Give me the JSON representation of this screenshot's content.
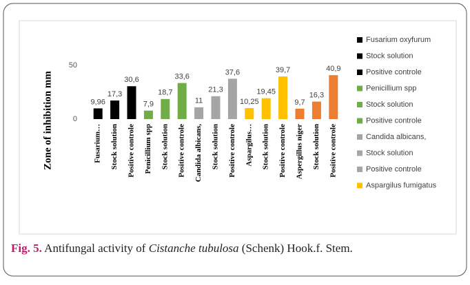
{
  "chart_data": {
    "type": "bar",
    "y_label": "Zone of inhibition  mm",
    "categories": [
      "Fusarium…",
      "Stock solution",
      "Positive controle",
      "Penicillium spp",
      "Stock solution",
      "Positive controle",
      "Candida albicans,",
      "Stock solution",
      "Positive controle",
      "Aspargilus…",
      "Stock solution",
      "Positive controle",
      "Aspergillus niger",
      "Stock solution",
      "Positive controle"
    ],
    "values": [
      9.96,
      17.3,
      30.6,
      7.9,
      18.7,
      33.6,
      11,
      21.3,
      37.6,
      10.25,
      19.45,
      39.7,
      9.7,
      16.3,
      40.9
    ],
    "value_labels": [
      "9,96",
      "17,3",
      "30,6",
      "7,9",
      "18,7",
      "33,6",
      "11",
      "21,3",
      "37,6",
      "10,25",
      "19,45",
      "39,7",
      "9,7",
      "16,3",
      "40,9"
    ],
    "colors": [
      "#000000",
      "#000000",
      "#000000",
      "#70ad47",
      "#70ad47",
      "#70ad47",
      "#a5a5a5",
      "#a5a5a5",
      "#a5a5a5",
      "#ffc000",
      "#ffc000",
      "#ffc000",
      "#ed7d31",
      "#ed7d31",
      "#ed7d31"
    ],
    "legend": [
      {
        "name": "Fusarium oxyfurum",
        "color": "#000000"
      },
      {
        "name": "Stock solution",
        "color": "#000000"
      },
      {
        "name": "Positive controle",
        "color": "#000000"
      },
      {
        "name": "Penicillium spp",
        "color": "#70ad47"
      },
      {
        "name": "Stock solution",
        "color": "#70ad47"
      },
      {
        "name": "Positive controle",
        "color": "#70ad47"
      },
      {
        "name": "Candida albicans,",
        "color": "#a5a5a5"
      },
      {
        "name": "Stock solution",
        "color": "#a5a5a5"
      },
      {
        "name": "Positive controle",
        "color": "#a5a5a5"
      },
      {
        "name": "Aspargilus fumigatus",
        "color": "#ffc000"
      }
    ],
    "ylim": [
      0,
      50
    ],
    "yticks": [
      0,
      50
    ],
    "grid": false,
    "caption": {
      "label": "Fig. 5.",
      "before": "Antifungal activity of ",
      "species": "Cistanche tubulosa",
      "after": " (Schenk) Hook.f. Stem."
    }
  }
}
